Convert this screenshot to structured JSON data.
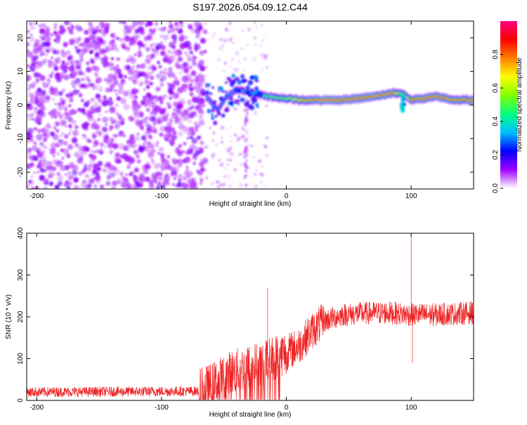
{
  "chart_data": [
    {
      "type": "heatmap",
      "title": "S197.2026.054.09.12.C44",
      "xlabel": "Height of straight line (km)",
      "ylabel": "Frequency (Hz)",
      "xlim": [
        -208,
        150
      ],
      "ylim": [
        -25,
        25
      ],
      "xticks": [
        -200,
        -100,
        0,
        100
      ],
      "yticks": [
        -20,
        -10,
        0,
        10,
        20
      ],
      "xtick_labels": [
        "-200",
        "-100",
        "0",
        "100"
      ],
      "ytick_labels": [
        "-20",
        "-10",
        "0",
        "10",
        "20"
      ],
      "colorbar": {
        "label": "Normalized spectral amplitude",
        "range": [
          0,
          1
        ],
        "ticks": [
          0.0,
          0.2,
          0.4,
          0.6,
          0.8
        ],
        "tick_labels": [
          "0.0",
          "0.2",
          "0.4",
          "0.6",
          "0.8"
        ],
        "colors": [
          "#ffffff",
          "#a000ff",
          "#0000ff",
          "#00c0ff",
          "#00ff80",
          "#80ff00",
          "#ffff00",
          "#ff8000",
          "#ff0000",
          "#ff0080"
        ]
      },
      "noise_region_x": [
        -208,
        -65
      ],
      "ridge": [
        {
          "x": -63,
          "freq": 2.0,
          "amp": 0.35
        },
        {
          "x": -55,
          "freq": -1.5,
          "amp": 0.3
        },
        {
          "x": -48,
          "freq": 2.5,
          "amp": 0.32
        },
        {
          "x": -40,
          "freq": 4.5,
          "amp": 0.36
        },
        {
          "x": -30,
          "freq": 4.0,
          "amp": 0.4
        },
        {
          "x": -20,
          "freq": 3.0,
          "amp": 0.5
        },
        {
          "x": -10,
          "freq": 2.2,
          "amp": 0.55
        },
        {
          "x": 0,
          "freq": 2.0,
          "amp": 0.55
        },
        {
          "x": 10,
          "freq": 1.5,
          "amp": 0.7
        },
        {
          "x": 30,
          "freq": 1.5,
          "amp": 0.9
        },
        {
          "x": 50,
          "freq": 1.6,
          "amp": 0.85
        },
        {
          "x": 70,
          "freq": 2.5,
          "amp": 0.85
        },
        {
          "x": 85,
          "freq": 3.5,
          "amp": 0.85
        },
        {
          "x": 93,
          "freq": 3.5,
          "amp": 0.5
        },
        {
          "x": 100,
          "freq": 1.5,
          "amp": 0.8
        },
        {
          "x": 120,
          "freq": 2.5,
          "amp": 0.85
        },
        {
          "x": 135,
          "freq": 1.5,
          "amp": 0.8
        },
        {
          "x": 150,
          "freq": 1.5,
          "amp": 0.8
        }
      ]
    },
    {
      "type": "line",
      "xlabel": "Height of straight line (km)",
      "ylabel": "SNR (10 * v/v)",
      "xlim": [
        -208,
        150
      ],
      "ylim": [
        0,
        400
      ],
      "xticks": [
        -200,
        -100,
        0,
        100
      ],
      "yticks": [
        0,
        100,
        200,
        300,
        400
      ],
      "xtick_labels": [
        "-200",
        "-100",
        "0",
        "100"
      ],
      "ytick_labels": [
        "0",
        "100",
        "200",
        "300",
        "400"
      ],
      "color": "#ee2222",
      "series": [
        {
          "name": "SNR",
          "baseline": [
            {
              "x": -208,
              "y": 20
            },
            {
              "x": -70,
              "y": 22
            },
            {
              "x": -60,
              "y": 35
            },
            {
              "x": -45,
              "y": 65
            },
            {
              "x": -30,
              "y": 80
            },
            {
              "x": -15,
              "y": 95
            },
            {
              "x": 0,
              "y": 115
            },
            {
              "x": 10,
              "y": 130
            },
            {
              "x": 20,
              "y": 165
            },
            {
              "x": 30,
              "y": 190
            },
            {
              "x": 45,
              "y": 205
            },
            {
              "x": 60,
              "y": 208
            },
            {
              "x": 80,
              "y": 210
            },
            {
              "x": 100,
              "y": 205
            },
            {
              "x": 120,
              "y": 205
            },
            {
              "x": 150,
              "y": 210
            }
          ],
          "spikes": [
            {
              "x": -15,
              "y": 270
            },
            {
              "x": 100,
              "y": 400
            },
            {
              "x": 101,
              "y": 90
            }
          ]
        }
      ]
    }
  ]
}
